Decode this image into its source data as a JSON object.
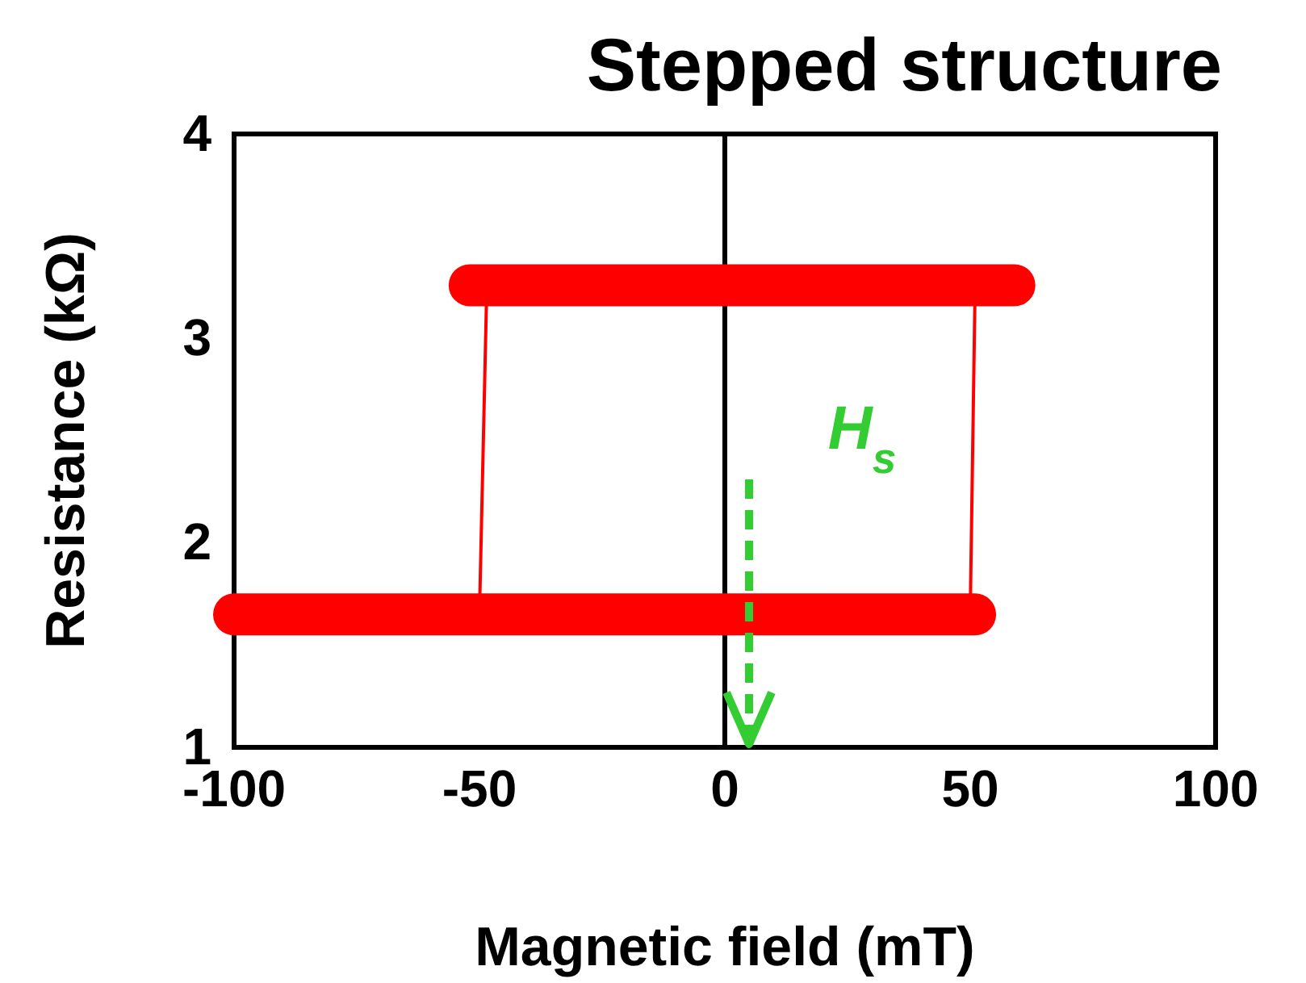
{
  "chart_data": {
    "type": "line",
    "title": "Stepped structure",
    "xlabel": "Magnetic field (mT)",
    "ylabel": "Resistance (kΩ)",
    "xlim": [
      -100,
      100
    ],
    "xticks": [
      -100,
      -50,
      0,
      50,
      100
    ],
    "ylim": [
      1,
      4
    ],
    "yticks": [
      1,
      2,
      3,
      4
    ],
    "grid": false,
    "line_style": "solid",
    "series": [
      {
        "color": "#ff0000",
        "x": [
          -52,
          59
        ],
        "values": [
          3.26,
          3.26
        ]
      },
      {
        "color": "#ff0000",
        "x": [
          -100,
          51
        ],
        "values": [
          1.65,
          1.65
        ]
      },
      {
        "color": "#ff0000",
        "x": [
          -48.5,
          -50,
          0,
          50,
          51
        ],
        "values": [
          3.26,
          1.65,
          null,
          1.65,
          3.26
        ]
      }
    ],
    "ref_lines": [
      {
        "axis": "x",
        "value": 0,
        "color": "#000000"
      }
    ],
    "annotations": [
      "H$_{s}$"
    ]
  }
}
